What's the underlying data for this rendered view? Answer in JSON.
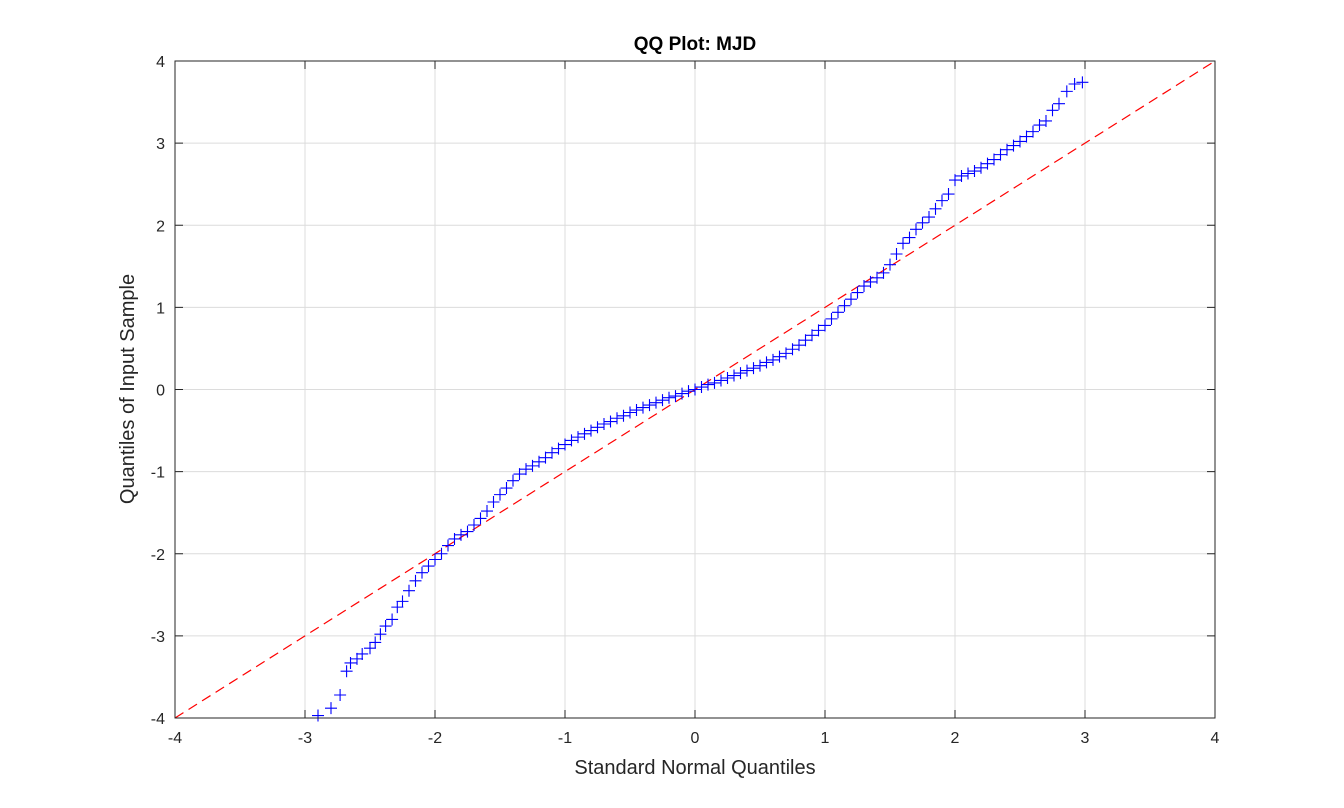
{
  "chart_data": {
    "type": "scatter",
    "title": "QQ Plot: MJD",
    "xlabel": "Standard Normal Quantiles",
    "ylabel": "Quantiles of Input Sample",
    "xlim": [
      -4,
      4
    ],
    "ylim": [
      -4,
      4
    ],
    "xticks": [
      -4,
      -3,
      -2,
      -1,
      0,
      1,
      2,
      3,
      4
    ],
    "yticks": [
      -4,
      -3,
      -2,
      -1,
      0,
      1,
      2,
      3,
      4
    ],
    "xtick_labels": [
      "-4",
      "-3",
      "-2",
      "-1",
      "0",
      "1",
      "2",
      "3",
      "4"
    ],
    "ytick_labels": [
      "-4",
      "-3",
      "-2",
      "-1",
      "0",
      "1",
      "2",
      "3",
      "4"
    ],
    "grid": true,
    "marker": "+",
    "colors": {
      "points": "#0000ff",
      "reference_line": "#ff0000",
      "grid": "#dcdcdc",
      "axes": "#262626"
    },
    "reference_line": {
      "style": "dashed",
      "x": [
        -4,
        4
      ],
      "y": [
        -4,
        4
      ]
    },
    "series": [
      {
        "x": [
          -2.9,
          -2.8,
          -2.73,
          -2.68,
          -2.65,
          -2.6,
          -2.56,
          -2.5,
          -2.46,
          -2.42,
          -2.38,
          -2.33,
          -2.29,
          -2.25,
          -2.2,
          -2.15,
          -2.1,
          -2.05,
          -2.0,
          -1.95,
          -1.9,
          -1.85,
          -1.8,
          -1.75,
          -1.7,
          -1.65,
          -1.6,
          -1.55,
          -1.5,
          -1.45,
          -1.4,
          -1.35,
          -1.3,
          -1.25,
          -1.2,
          -1.15,
          -1.1,
          -1.05,
          -1.0,
          -0.95,
          -0.9,
          -0.85,
          -0.8,
          -0.75,
          -0.7,
          -0.65,
          -0.6,
          -0.55,
          -0.5,
          -0.45,
          -0.4,
          -0.35,
          -0.3,
          -0.25,
          -0.2,
          -0.15,
          -0.1,
          -0.05,
          0.0,
          0.05,
          0.1,
          0.15,
          0.2,
          0.25,
          0.3,
          0.35,
          0.4,
          0.45,
          0.5,
          0.55,
          0.6,
          0.65,
          0.7,
          0.75,
          0.8,
          0.85,
          0.9,
          0.95,
          1.0,
          1.05,
          1.1,
          1.15,
          1.2,
          1.25,
          1.3,
          1.35,
          1.4,
          1.45,
          1.5,
          1.55,
          1.6,
          1.65,
          1.7,
          1.75,
          1.8,
          1.85,
          1.9,
          1.95,
          2.0,
          2.05,
          2.1,
          2.15,
          2.2,
          2.25,
          2.3,
          2.35,
          2.4,
          2.45,
          2.5,
          2.55,
          2.6,
          2.65,
          2.7,
          2.75,
          2.8,
          2.86,
          2.92,
          2.98
        ],
        "y": [
          -3.97,
          -3.88,
          -3.72,
          -3.43,
          -3.33,
          -3.28,
          -3.22,
          -3.15,
          -3.08,
          -2.98,
          -2.88,
          -2.8,
          -2.65,
          -2.58,
          -2.45,
          -2.33,
          -2.23,
          -2.15,
          -2.07,
          -2.0,
          -1.9,
          -1.82,
          -1.77,
          -1.73,
          -1.65,
          -1.57,
          -1.48,
          -1.37,
          -1.28,
          -1.2,
          -1.11,
          -1.03,
          -0.97,
          -0.93,
          -0.88,
          -0.83,
          -0.77,
          -0.72,
          -0.67,
          -0.62,
          -0.58,
          -0.54,
          -0.5,
          -0.46,
          -0.42,
          -0.39,
          -0.35,
          -0.32,
          -0.28,
          -0.25,
          -0.22,
          -0.19,
          -0.16,
          -0.13,
          -0.1,
          -0.08,
          -0.05,
          -0.02,
          0.0,
          0.03,
          0.06,
          0.08,
          0.11,
          0.14,
          0.17,
          0.2,
          0.23,
          0.26,
          0.29,
          0.33,
          0.36,
          0.4,
          0.44,
          0.49,
          0.54,
          0.6,
          0.66,
          0.72,
          0.78,
          0.86,
          0.94,
          1.02,
          1.1,
          1.18,
          1.26,
          1.31,
          1.36,
          1.42,
          1.52,
          1.65,
          1.78,
          1.85,
          1.95,
          2.03,
          2.1,
          2.2,
          2.3,
          2.38,
          2.55,
          2.6,
          2.63,
          2.66,
          2.7,
          2.75,
          2.8,
          2.86,
          2.92,
          2.97,
          3.02,
          3.08,
          3.14,
          3.22,
          3.27,
          3.4,
          3.48,
          3.63,
          3.72,
          3.74
        ]
      }
    ]
  }
}
